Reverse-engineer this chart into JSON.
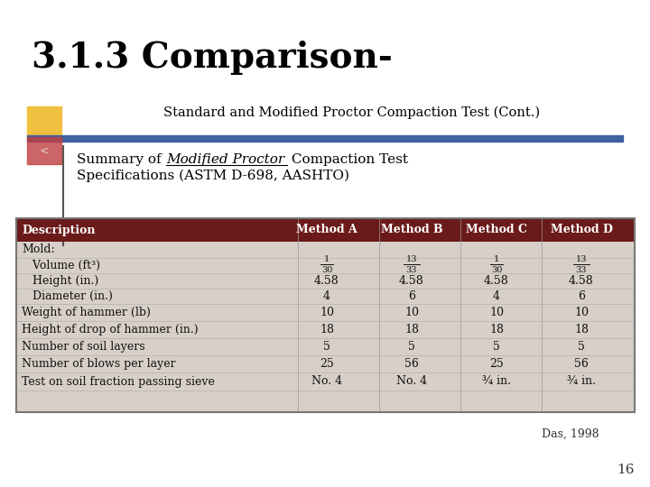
{
  "title": "3.1.3 Comparison-",
  "subtitle": "Standard and Modified Proctor Compaction Test (Cont.)",
  "body_line2": "Specifications (ASTM D-698, AASHTO)",
  "das_ref": "Das, 1998",
  "page_num": "16",
  "table_header": [
    "Description",
    "Method A",
    "Method B",
    "Method C",
    "Method D"
  ],
  "table_rows": [
    [
      "Mold:",
      "",
      "",
      "",
      ""
    ],
    [
      "   Volume (ft³)",
      "FRAC_1_30",
      "FRAC_13_33",
      "FRAC_1_30",
      "FRAC_13_33"
    ],
    [
      "   Height (in.)",
      "4.58",
      "4.58",
      "4.58",
      "4.58"
    ],
    [
      "   Diameter (in.)",
      "4",
      "6",
      "4",
      "6"
    ],
    [
      "Weight of hammer (lb)",
      "10",
      "10",
      "10",
      "10"
    ],
    [
      "Height of drop of hammer (in.)",
      "18",
      "18",
      "18",
      "18"
    ],
    [
      "Number of soil layers",
      "5",
      "5",
      "5",
      "5"
    ],
    [
      "Number of blows per layer",
      "25",
      "56",
      "25",
      "56"
    ],
    [
      "Test on soil fraction passing sieve",
      "No. 4",
      "No. 4",
      "¾ in.",
      "¾ in."
    ]
  ],
  "header_bg": "#6b1a1a",
  "header_text_color": "#ffffff",
  "table_bg": "#d8d0c8",
  "bg_color": "#ffffff",
  "title_color": "#000000",
  "accent_yellow": "#f0c040",
  "accent_blue": "#4060a0",
  "accent_red": "#c04040"
}
